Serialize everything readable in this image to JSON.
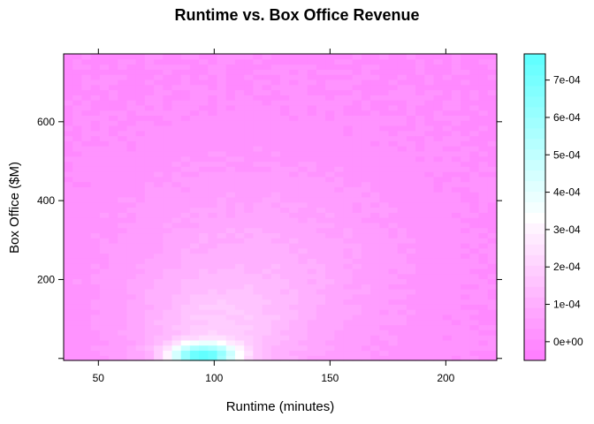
{
  "chart_data": {
    "type": "heatmap",
    "title": "Runtime vs. Box Office Revenue",
    "xlabel": "Runtime (minutes)",
    "ylabel": "Box Office ($M)",
    "xlim": [
      35,
      222
    ],
    "ylim": [
      -5,
      772
    ],
    "xticks": [
      50,
      100,
      150,
      200
    ],
    "yticks": [
      200,
      400,
      600
    ],
    "x_range": [
      35,
      222
    ],
    "y_range": [
      -5,
      772
    ],
    "n_cols": 48,
    "n_rows": 60,
    "density_model": {
      "description": "2D kernel density of runtime vs box office",
      "peak_x": 95,
      "peak_y": 10,
      "max_density": 0.00072
    },
    "colorkey": {
      "min": -5e-05,
      "max": 0.00077,
      "ticks": [
        0,
        0.0001,
        0.0002,
        0.0003,
        0.0004,
        0.0005,
        0.0006,
        0.0007
      ],
      "tick_labels": [
        "0e+00",
        "1e-04",
        "2e-04",
        "3e-04",
        "4e-04",
        "5e-04",
        "6e-04",
        "7e-04"
      ],
      "colors": [
        "#FF80FF",
        "#FF89FF",
        "#FF93FF",
        "#FF9DFF",
        "#FFA6FF",
        "#FFB0FF",
        "#FFBAFF",
        "#FFC4FF",
        "#FFCDFF",
        "#FFD7FF",
        "#FFE1FF",
        "#FFEAFF",
        "#FFF4FF",
        "#FFFFFF",
        "#F4FFFF",
        "#EAFFFF",
        "#E0FFFF",
        "#D5FFFF",
        "#CBFFFF",
        "#C0FFFF",
        "#B6FFFF",
        "#ABFFFF",
        "#A1FFFF",
        "#96FFFF",
        "#8CFFFF",
        "#82FFFF",
        "#77FFFF",
        "#6DFFFF",
        "#62FFFF"
      ]
    },
    "grid": false,
    "legend": "right"
  }
}
